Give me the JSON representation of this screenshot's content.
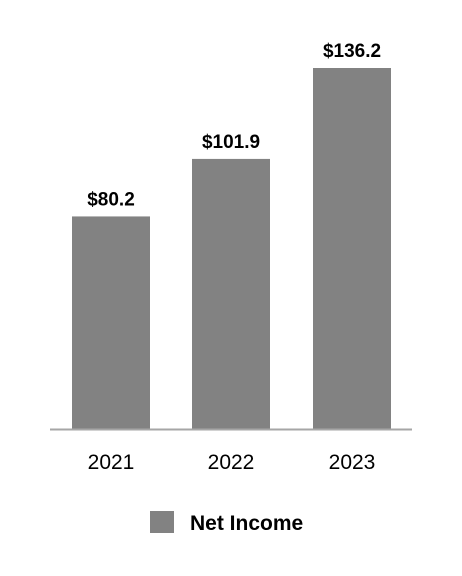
{
  "chart_data": {
    "type": "bar",
    "categories": [
      "2021",
      "2022",
      "2023"
    ],
    "series": [
      {
        "name": "Net Income",
        "values": [
          80.2,
          101.9,
          136.2
        ],
        "data_labels": [
          "$80.2",
          "$101.9",
          "$136.2"
        ],
        "color": "#828282"
      }
    ],
    "title": "",
    "xlabel": "",
    "ylabel": "",
    "ylim": [
      0,
      136.2
    ],
    "grid": false,
    "legend_placement": "bottom",
    "axis_color": "#a6a6a6"
  }
}
